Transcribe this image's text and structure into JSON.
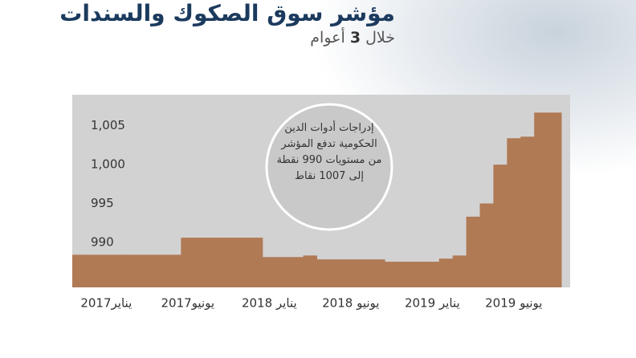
{
  "chart_data": {
    "type": "area",
    "title": "مؤشر سوق الصكوك والسندات",
    "subtitle": [
      "خلال",
      "3",
      "أعوام"
    ],
    "annotation": "إدراجات أدوات الدين الحكومية تدفع المؤشر من مستويات 990 نقطة إلى 1007 نقاط",
    "categories": [
      null,
      null,
      "يناير2017",
      null,
      null,
      null,
      null,
      null,
      "يونيو2017",
      null,
      null,
      null,
      null,
      null,
      "يناير 2018",
      null,
      null,
      null,
      null,
      null,
      "يونيو 2018",
      null,
      null,
      null,
      null,
      null,
      "يناير 2019",
      null,
      null,
      null,
      null,
      null,
      "يونيو 2019",
      null,
      null,
      null
    ],
    "values": [
      988.4,
      988.4,
      988.4,
      988.4,
      988.4,
      988.4,
      988.4,
      988.4,
      990.6,
      990.6,
      990.6,
      990.6,
      990.6,
      990.6,
      988.1,
      988.1,
      988.1,
      988.3,
      987.8,
      987.8,
      987.8,
      987.8,
      987.8,
      987.5,
      987.5,
      987.5,
      987.5,
      987.9,
      988.3,
      993.3,
      995,
      1000,
      1003.4,
      1003.6,
      1006.7,
      1006.7
    ],
    "color": "#b07a55",
    "ylim": [
      984.2,
      1009
    ],
    "yticks": [
      990,
      995,
      {
        "value": 1000,
        "label": "1,000"
      },
      {
        "value": 1005,
        "label": "1,005"
      }
    ]
  }
}
